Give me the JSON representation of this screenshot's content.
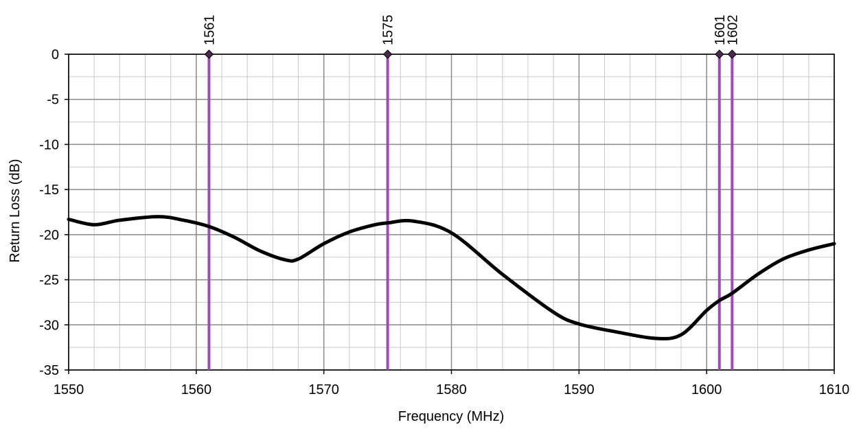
{
  "chart_data": {
    "type": "line",
    "xlabel": "Frequency (MHz)",
    "ylabel": "Return Loss (dB)",
    "xlim": [
      1550,
      1610
    ],
    "ylim": [
      -35,
      0
    ],
    "x_ticks": [
      1550,
      1560,
      1570,
      1580,
      1590,
      1600,
      1610
    ],
    "y_ticks": [
      0,
      -5,
      -10,
      -15,
      -20,
      -25,
      -30,
      -35
    ],
    "x_minor_step": 2,
    "y_minor_step": 2.5,
    "grid": true,
    "series": [
      {
        "color": "#000000",
        "x": [
          1550,
          1552,
          1554,
          1557,
          1559,
          1561,
          1563,
          1565,
          1567,
          1568,
          1570,
          1572,
          1574,
          1575,
          1577,
          1580,
          1584,
          1588,
          1590,
          1593,
          1596,
          1598,
          1600,
          1601,
          1602,
          1604,
          1606,
          1608,
          1610
        ],
        "y": [
          -18.3,
          -18.9,
          -18.4,
          -18.0,
          -18.4,
          -19.1,
          -20.3,
          -21.8,
          -22.8,
          -22.7,
          -21.0,
          -19.7,
          -18.9,
          -18.7,
          -18.5,
          -19.8,
          -24.4,
          -28.6,
          -29.9,
          -30.8,
          -31.5,
          -31.1,
          -28.4,
          -27.3,
          -26.5,
          -24.4,
          -22.7,
          -21.7,
          -21.0
        ]
      }
    ],
    "markers": {
      "color": "#9b4fb5",
      "positions": [
        1561,
        1575,
        1601,
        1602
      ],
      "labels": [
        "1561",
        "1575",
        "1601",
        "1602"
      ]
    }
  }
}
